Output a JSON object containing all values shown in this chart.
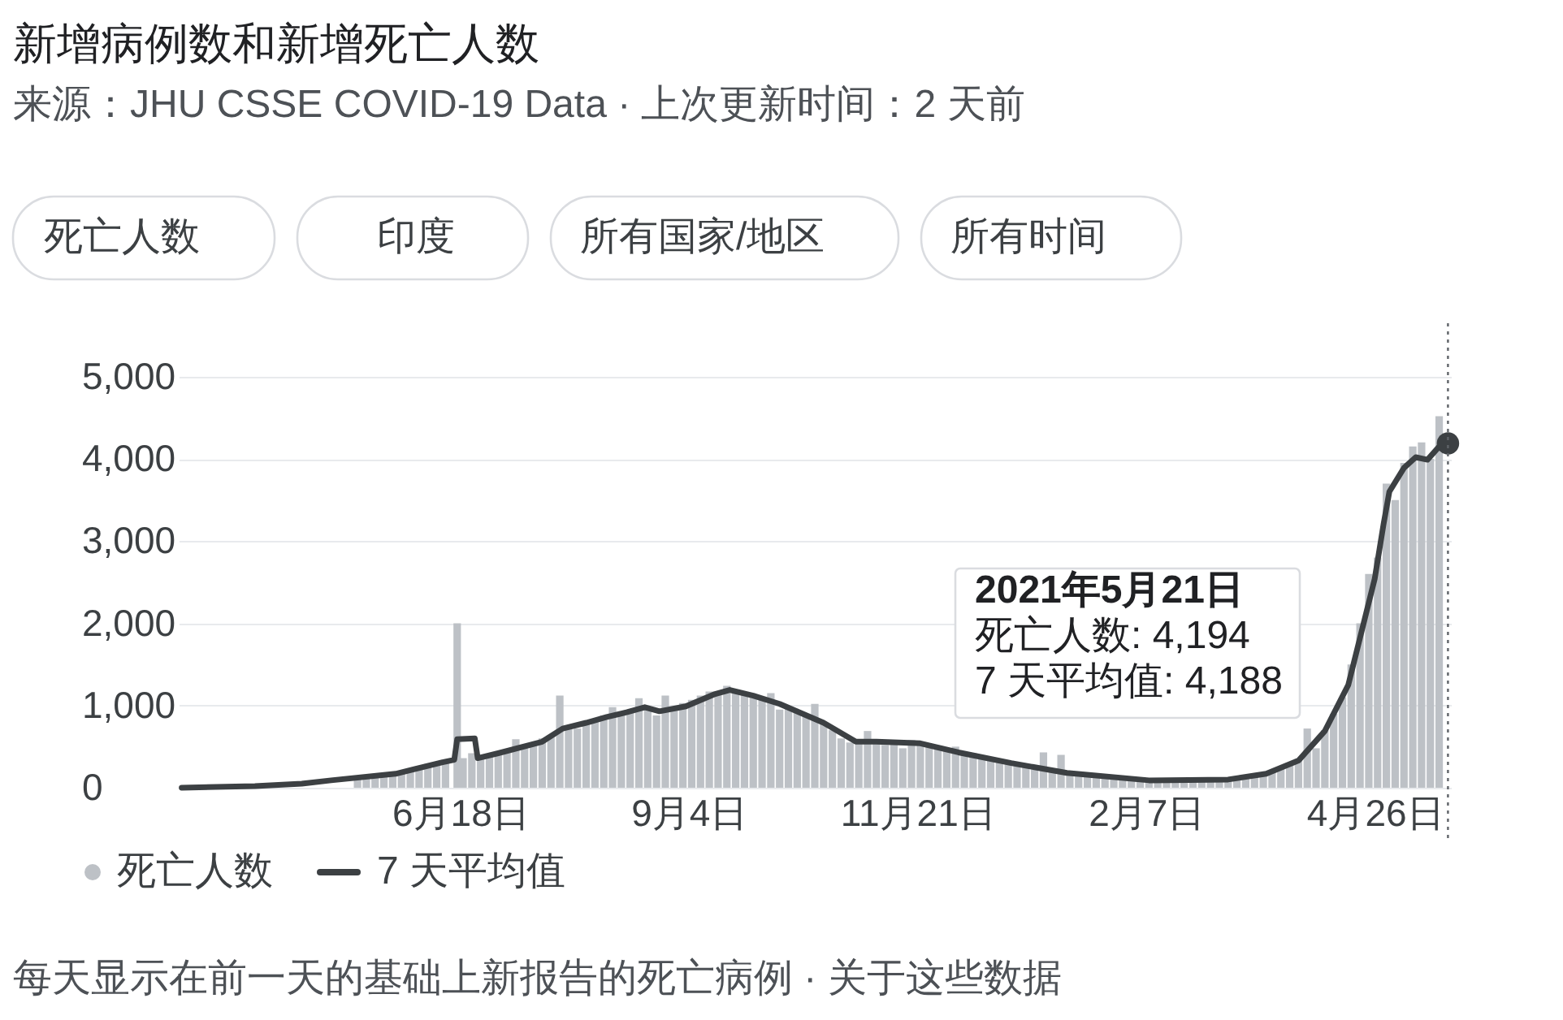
{
  "chart_data": {
    "type": "bar",
    "title": "新增病例数和新增死亡人数",
    "subtitle": "来源：JHU CSSE COVID-19 Data · 上次更新时间：2 天前",
    "annotations": [
      "死亡人数",
      "印度",
      "所有国家/地区",
      "所有时间",
      "2021年5月21日",
      "死亡人数: 4,194",
      "7 天平均值: 4,188",
      "每天显示在前一天的基础上新报告的死亡病例 · 关于这些数据"
    ],
    "x": [
      "2020-05-14",
      "2020-05-17",
      "2020-05-20",
      "2020-05-23",
      "2020-05-26",
      "2020-05-29",
      "2020-06-01",
      "2020-06-04",
      "2020-06-07",
      "2020-06-10",
      "2020-06-13",
      "2020-06-17",
      "2020-06-19",
      "2020-06-22",
      "2020-06-25",
      "2020-06-28",
      "2020-07-01",
      "2020-07-04",
      "2020-07-07",
      "2020-07-10",
      "2020-07-13",
      "2020-07-16",
      "2020-07-19",
      "2020-07-22",
      "2020-07-25",
      "2020-07-28",
      "2020-07-31",
      "2020-08-03",
      "2020-08-06",
      "2020-08-09",
      "2020-08-12",
      "2020-08-15",
      "2020-08-18",
      "2020-08-21",
      "2020-08-24",
      "2020-08-27",
      "2020-08-30",
      "2020-09-02",
      "2020-09-05",
      "2020-09-08",
      "2020-09-11",
      "2020-09-14",
      "2020-09-17",
      "2020-09-20",
      "2020-09-23",
      "2020-09-26",
      "2020-09-29",
      "2020-10-02",
      "2020-10-05",
      "2020-10-08",
      "2020-10-11",
      "2020-10-14",
      "2020-10-17",
      "2020-10-20",
      "2020-10-23",
      "2020-10-26",
      "2020-10-29",
      "2020-11-01",
      "2020-11-04",
      "2020-11-07",
      "2020-11-10",
      "2020-11-13",
      "2020-11-16",
      "2020-11-19",
      "2020-11-22",
      "2020-11-25",
      "2020-11-28",
      "2020-12-01",
      "2020-12-04",
      "2020-12-07",
      "2020-12-10",
      "2020-12-13",
      "2020-12-16",
      "2020-12-19",
      "2020-12-22",
      "2020-12-25",
      "2020-12-28",
      "2020-12-31",
      "2021-01-03",
      "2021-01-06",
      "2021-01-09",
      "2021-01-12",
      "2021-01-15",
      "2021-01-18",
      "2021-01-21",
      "2021-01-24",
      "2021-01-27",
      "2021-01-30",
      "2021-02-02",
      "2021-02-05",
      "2021-02-08",
      "2021-02-11",
      "2021-02-14",
      "2021-02-17",
      "2021-02-20",
      "2021-02-23",
      "2021-02-26",
      "2021-03-01",
      "2021-03-04",
      "2021-03-07",
      "2021-03-10",
      "2021-03-13",
      "2021-03-16",
      "2021-03-19",
      "2021-03-22",
      "2021-03-25",
      "2021-03-28",
      "2021-03-31",
      "2021-04-03",
      "2021-04-06",
      "2021-04-09",
      "2021-04-12",
      "2021-04-15",
      "2021-04-18",
      "2021-04-21",
      "2021-04-24",
      "2021-04-27",
      "2021-04-30",
      "2021-05-03",
      "2021-05-06",
      "2021-05-09",
      "2021-05-12",
      "2021-05-15",
      "2021-05-18"
    ],
    "series": [
      {
        "name": "死亡人数",
        "color": "#bdc1c6",
        "values": [
          110,
          120,
          130,
          140,
          160,
          180,
          210,
          260,
          290,
          300,
          320,
          2000,
          360,
          420,
          400,
          400,
          430,
          440,
          590,
          480,
          520,
          600,
          640,
          1120,
          750,
          720,
          780,
          830,
          880,
          980,
          880,
          950,
          1090,
          960,
          880,
          1120,
          950,
          1030,
          1070,
          1120,
          1170,
          1150,
          1240,
          1150,
          1140,
          1110,
          1070,
          1150,
          950,
          960,
          920,
          880,
          1020,
          780,
          700,
          600,
          550,
          540,
          690,
          560,
          520,
          550,
          480,
          580,
          540,
          520,
          500,
          480,
          500,
          420,
          420,
          380,
          360,
          340,
          300,
          290,
          260,
          250,
          430,
          230,
          400,
          180,
          170,
          150,
          150,
          130,
          120,
          120,
          100,
          100,
          90,
          90,
          90,
          100,
          100,
          110,
          110,
          100,
          100,
          100,
          110,
          120,
          140,
          160,
          200,
          240,
          280,
          350,
          720,
          480,
          700,
          900,
          1100,
          1500,
          2000,
          2600,
          2800,
          3700,
          3500,
          3950,
          4150,
          4200,
          4000,
          4520
        ]
      },
      {
        "type": "line",
        "name": "7 天平均值",
        "color": "#3c4043",
        "x": [
          "2020-03-15",
          "2020-04-09",
          "2020-04-25",
          "2020-05-05",
          "2020-05-27",
          "2020-06-12",
          "2020-06-16",
          "2020-06-17",
          "2020-06-23",
          "2020-06-24",
          "2020-07-01",
          "2020-07-16",
          "2020-07-23",
          "2020-07-31",
          "2020-08-07",
          "2020-08-14",
          "2020-08-20",
          "2020-08-25",
          "2020-09-03",
          "2020-09-13",
          "2020-09-18",
          "2020-09-26",
          "2020-10-05",
          "2020-10-20",
          "2020-10-31",
          "2020-11-07",
          "2020-11-22",
          "2020-12-05",
          "2020-12-23",
          "2021-01-11",
          "2021-02-08",
          "2021-03-07",
          "2021-03-20",
          "2021-03-31",
          "2021-04-09",
          "2021-04-17",
          "2021-04-26",
          "2021-04-29",
          "2021-05-01",
          "2021-05-06",
          "2021-05-10",
          "2021-05-14",
          "2021-05-18",
          "2021-05-21"
        ],
        "values": [
          0,
          20,
          50,
          90,
          170,
          310,
          340,
          590,
          600,
          360,
          420,
          560,
          720,
          790,
          860,
          920,
          980,
          930,
          990,
          1140,
          1190,
          1120,
          1020,
          790,
          560,
          560,
          540,
          430,
          300,
          180,
          90,
          100,
          170,
          330,
          690,
          1250,
          2540,
          3200,
          3600,
          3890,
          4020,
          3990,
          4150,
          4188
        ]
      },
      {
        "type": "scatter",
        "color": "#3c4043",
        "marker": "circle",
        "x": [
          "2021-05-21"
        ],
        "values": [
          4188
        ]
      }
    ],
    "xlim": [
      "2020-03-14",
      "2021-05-22"
    ],
    "xticks": [
      {
        "value": "2020-06-18",
        "label": "6月18日"
      },
      {
        "value": "2020-09-04",
        "label": "9月4日"
      },
      {
        "value": "2020-11-21",
        "label": "11月21日"
      },
      {
        "value": "2021-02-07",
        "label": "2月7日"
      },
      {
        "value": "2021-04-26",
        "label": "4月26日"
      }
    ],
    "ylim": [
      0,
      5650
    ],
    "yticks": [
      0,
      {
        "value": 1000,
        "label": "1,000"
      },
      {
        "value": 2000,
        "label": "2,000"
      },
      {
        "value": 3000,
        "label": "3,000"
      },
      {
        "value": 4000,
        "label": "4,000"
      },
      {
        "value": 5000,
        "label": "5,000"
      }
    ],
    "grid": "y",
    "legend": "bottom left",
    "ref_lines": [
      {
        "axis": "x",
        "value": "2021-05-21",
        "line_style": "dotted",
        "color": "#5f6368"
      }
    ]
  }
}
